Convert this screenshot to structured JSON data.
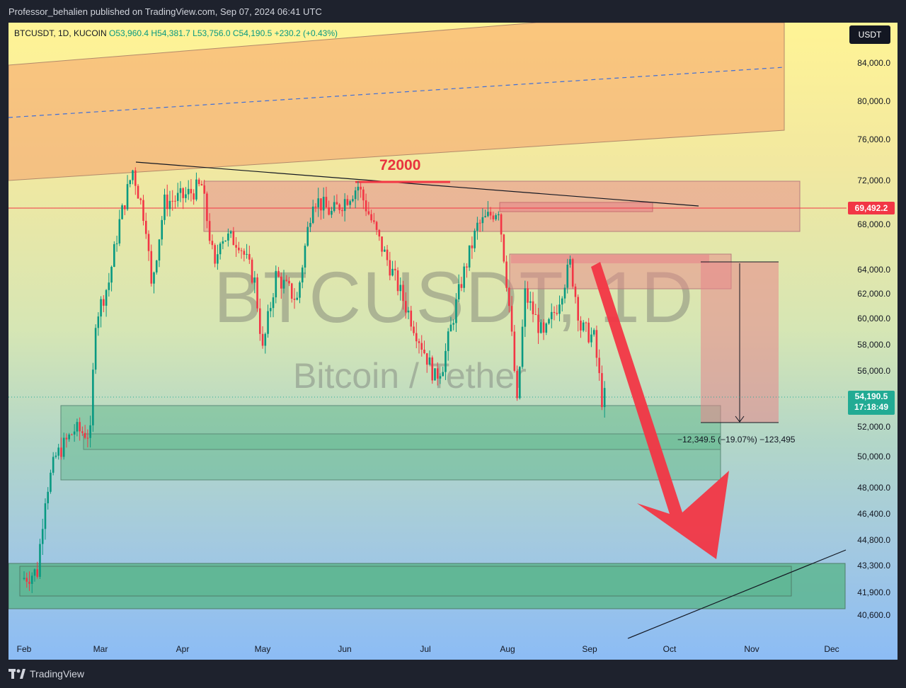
{
  "header": {
    "publisher_line": "Professor_behalien published on TradingView.com, Sep 07, 2024 06:41 UTC"
  },
  "legend": {
    "symbol": "BTCUSDT, 1D, KUCOIN",
    "open": "O53,960.4",
    "high": "H54,381.7",
    "low": "L53,756.0",
    "close": "C54,190.5",
    "change": "+230.2 (+0.43%)"
  },
  "currency_button": "USDT",
  "watermark": {
    "main": "BTCUSDT, 1D",
    "sub": "Bitcoin / Tether"
  },
  "annotations": {
    "level_72000": "72000",
    "measure": "−12,349.5 (−19.07%) −123,495"
  },
  "price_labels": {
    "red_line": "69,492.2",
    "last_price": "54,190.5",
    "countdown": "17:18:49"
  },
  "footer": {
    "brand": "TradingView"
  },
  "colors": {
    "up": "#089981",
    "down": "#f23645",
    "zone_red": "#e8858a",
    "zone_green": "#56b486",
    "channel": "#f5a06a",
    "arrow": "#f23645"
  },
  "chart_data": {
    "type": "candlestick",
    "title": "BTCUSDT, 1D, KUCOIN",
    "y_ticks": [
      "84,000.0",
      "80,000.0",
      "76,000.0",
      "72,000.0",
      "68,000.0",
      "64,000.0",
      "62,000.0",
      "60,000.0",
      "58,000.0",
      "56,000.0",
      "52,000.0",
      "50,000.0",
      "48,000.0",
      "46,400.0",
      "44,800.0",
      "43,300.0",
      "41,900.0",
      "40,600.0"
    ],
    "x_ticks": [
      "Feb",
      "Mar",
      "Apr",
      "May",
      "Jun",
      "Jul",
      "Aug",
      "Sep",
      "Oct",
      "Nov",
      "Dec"
    ],
    "last_close": 54190.5,
    "horizontal_line": 69492.2,
    "grid": false,
    "close_path": [
      [
        "2024-01-31",
        42600
      ],
      [
        "2024-02-06",
        43000
      ],
      [
        "2024-02-09",
        47500
      ],
      [
        "2024-02-13",
        50000
      ],
      [
        "2024-02-20",
        51800
      ],
      [
        "2024-02-26",
        51500
      ],
      [
        "2024-02-28",
        60000
      ],
      [
        "2024-03-04",
        63000
      ],
      [
        "2024-03-08",
        68200
      ],
      [
        "2024-03-13",
        73000
      ],
      [
        "2024-03-18",
        68000
      ],
      [
        "2024-03-20",
        62500
      ],
      [
        "2024-03-25",
        70000
      ],
      [
        "2024-04-01",
        70500
      ],
      [
        "2024-04-08",
        71500
      ],
      [
        "2024-04-13",
        64000
      ],
      [
        "2024-04-15",
        67000
      ],
      [
        "2024-04-22",
        66500
      ],
      [
        "2024-04-28",
        63000
      ],
      [
        "2024-05-01",
        57500
      ],
      [
        "2024-05-06",
        63500
      ],
      [
        "2024-05-14",
        61500
      ],
      [
        "2024-05-20",
        70500
      ],
      [
        "2024-05-27",
        69000
      ],
      [
        "2024-06-06",
        71500
      ],
      [
        "2024-06-14",
        66500
      ],
      [
        "2024-06-24",
        61000
      ],
      [
        "2024-07-05",
        55500
      ],
      [
        "2024-07-08",
        56500
      ],
      [
        "2024-07-15",
        63000
      ],
      [
        "2024-07-21",
        67800
      ],
      [
        "2024-07-29",
        69500
      ],
      [
        "2024-08-02",
        61000
      ],
      [
        "2024-08-05",
        53500
      ],
      [
        "2024-08-08",
        62000
      ],
      [
        "2024-08-15",
        58500
      ],
      [
        "2024-08-20",
        61000
      ],
      [
        "2024-08-25",
        64500
      ],
      [
        "2024-08-29",
        59300
      ],
      [
        "2024-09-03",
        58500
      ],
      [
        "2024-09-06",
        53960
      ],
      [
        "2024-09-07",
        54190
      ]
    ]
  }
}
